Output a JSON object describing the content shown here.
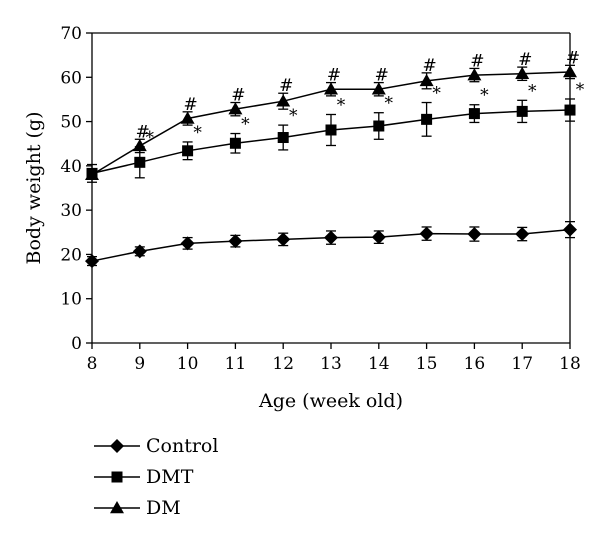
{
  "chart_data": {
    "type": "line",
    "title": "",
    "xlabel": "Age (week old)",
    "ylabel": "Body weight (g)",
    "xlim": [
      8,
      18
    ],
    "ylim": [
      0,
      70
    ],
    "x_ticks": [
      8,
      9,
      10,
      11,
      12,
      13,
      14,
      15,
      16,
      17,
      18
    ],
    "y_ticks": [
      0,
      10,
      20,
      30,
      40,
      50,
      60,
      70
    ],
    "grid": false,
    "legend_position": "bottom-left",
    "x": [
      8,
      9,
      10,
      11,
      12,
      13,
      14,
      15,
      16,
      17,
      18
    ],
    "series": [
      {
        "name": "Control",
        "marker": "diamond",
        "values": [
          18.5,
          20.7,
          22.5,
          23.0,
          23.4,
          23.8,
          23.9,
          24.7,
          24.6,
          24.6,
          25.6
        ],
        "error": [
          1.0,
          1.0,
          1.3,
          1.3,
          1.4,
          1.5,
          1.4,
          1.5,
          1.6,
          1.5,
          1.8
        ],
        "annotations": []
      },
      {
        "name": "DMT",
        "marker": "square",
        "values": [
          38.3,
          40.8,
          43.4,
          45.1,
          46.4,
          48.1,
          49.0,
          50.5,
          51.8,
          52.3,
          52.6
        ],
        "error": [
          2.0,
          3.5,
          2.0,
          2.2,
          2.8,
          3.5,
          3.0,
          3.8,
          2.0,
          2.5,
          2.5
        ],
        "annotations": [
          {
            "x": 9,
            "label": "*"
          },
          {
            "x": 10,
            "label": "*"
          },
          {
            "x": 11,
            "label": "*"
          },
          {
            "x": 12,
            "label": "*"
          },
          {
            "x": 13,
            "label": "*"
          },
          {
            "x": 14,
            "label": "*"
          },
          {
            "x": 15,
            "label": "*"
          },
          {
            "x": 16,
            "label": "*"
          },
          {
            "x": 17,
            "label": "*"
          },
          {
            "x": 18,
            "label": "*"
          }
        ]
      },
      {
        "name": "DM",
        "marker": "triangle",
        "values": [
          38.0,
          44.5,
          50.7,
          52.8,
          54.6,
          57.3,
          57.3,
          59.2,
          60.5,
          60.8,
          61.2
        ],
        "error": [
          1.0,
          1.5,
          1.5,
          1.5,
          1.8,
          1.5,
          1.5,
          1.8,
          1.5,
          1.5,
          1.5
        ],
        "annotations": [
          {
            "x": 9,
            "label": "#"
          },
          {
            "x": 10,
            "label": "#"
          },
          {
            "x": 11,
            "label": "#"
          },
          {
            "x": 12,
            "label": "#"
          },
          {
            "x": 13,
            "label": "#"
          },
          {
            "x": 14,
            "label": "#"
          },
          {
            "x": 15,
            "label": "#"
          },
          {
            "x": 16,
            "label": "#"
          },
          {
            "x": 17,
            "label": "#"
          },
          {
            "x": 18,
            "label": "#"
          }
        ]
      }
    ]
  }
}
